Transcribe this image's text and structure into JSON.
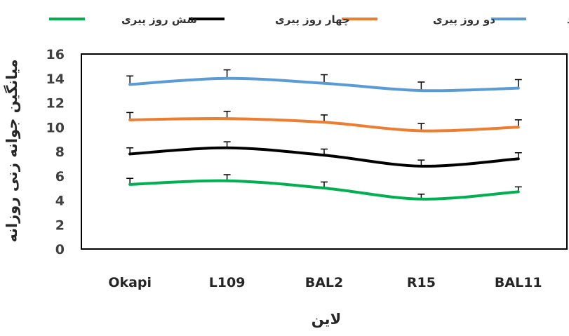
{
  "chart_data": {
    "type": "line",
    "title": "",
    "xlabel": "لاین",
    "ylabel": "میانگین جوانه زنی روزانه",
    "ylim": [
      0,
      16
    ],
    "yticks": [
      0,
      2,
      4,
      6,
      8,
      10,
      12,
      14,
      16
    ],
    "categories": [
      "Okapi",
      "L109",
      "BAL2",
      "R15",
      "BAL11"
    ],
    "error_bars": "plus-only",
    "legend_position": "top",
    "grid": false,
    "series": [
      {
        "name": "شاهد",
        "color": "#5B9BD5",
        "values": [
          13.5,
          14.0,
          13.6,
          13.0,
          13.2
        ],
        "errors": [
          0.7,
          0.7,
          0.7,
          0.7,
          0.7
        ]
      },
      {
        "name": "دو روز پیری",
        "color": "#ED7D31",
        "values": [
          10.6,
          10.7,
          10.4,
          9.7,
          10.0
        ],
        "errors": [
          0.6,
          0.6,
          0.6,
          0.6,
          0.6
        ]
      },
      {
        "name": "چهار روز پیری",
        "color": "#000000",
        "values": [
          7.8,
          8.3,
          7.7,
          6.8,
          7.4
        ],
        "errors": [
          0.5,
          0.5,
          0.5,
          0.5,
          0.5
        ]
      },
      {
        "name": "شش روز پیری",
        "color": "#00B050",
        "values": [
          5.3,
          5.6,
          5.0,
          4.1,
          4.7
        ],
        "errors": [
          0.5,
          0.5,
          0.5,
          0.4,
          0.4
        ]
      }
    ]
  }
}
